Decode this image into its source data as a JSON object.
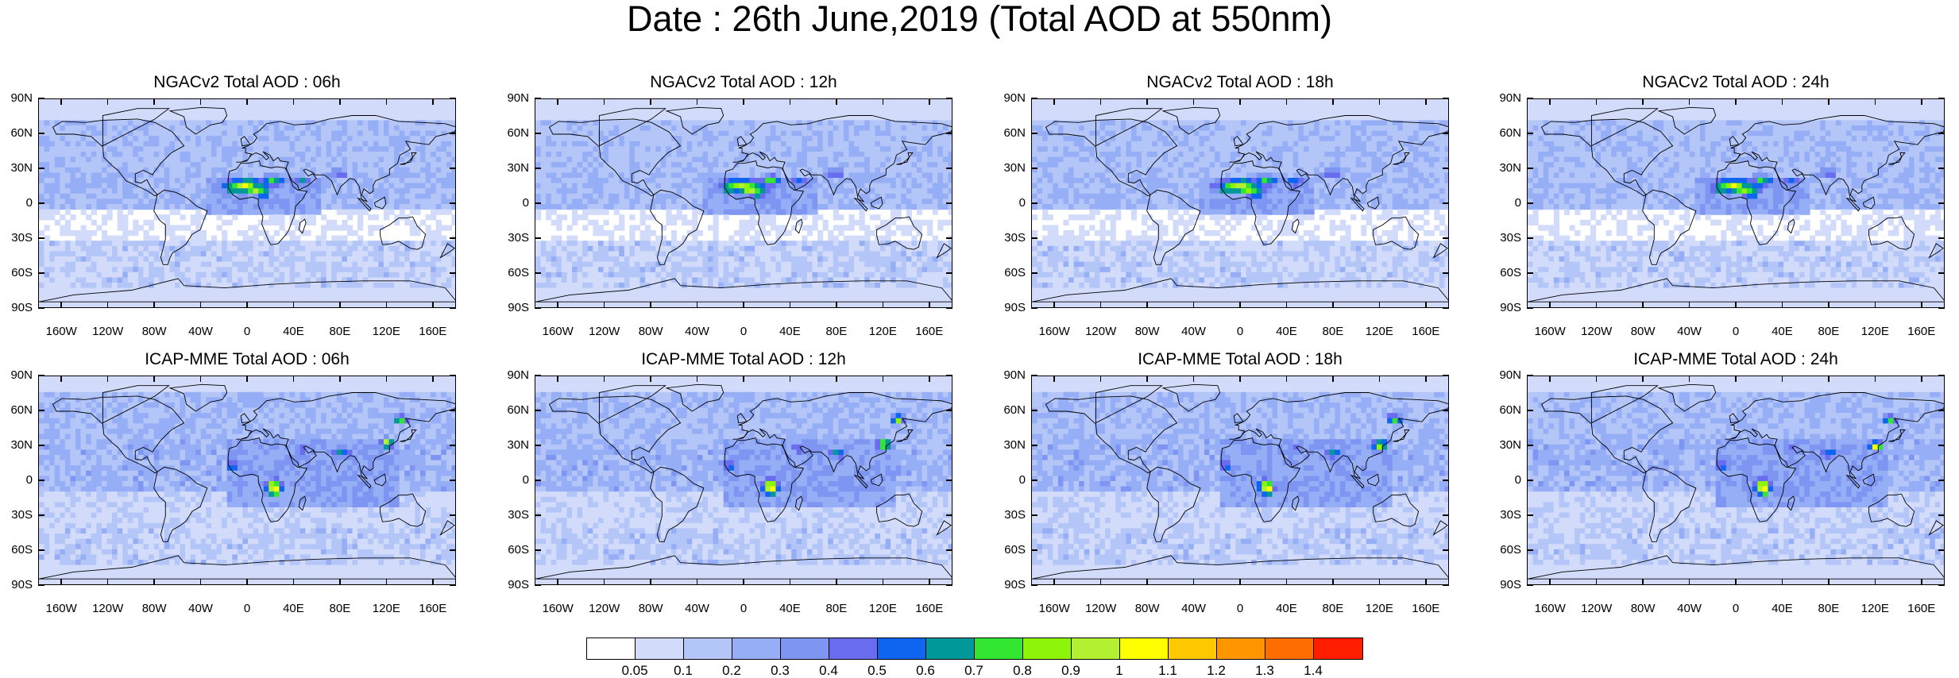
{
  "title": "Date : 26th June,2019 (Total AOD at 550nm)",
  "chart_data": [
    {
      "type": "heatmap",
      "title": "NGACv2 Total AOD : 06h",
      "model": "NGACv2",
      "hour": "06h",
      "row": 0,
      "col": 0
    },
    {
      "type": "heatmap",
      "title": "NGACv2 Total AOD : 12h",
      "model": "NGACv2",
      "hour": "12h",
      "row": 0,
      "col": 1
    },
    {
      "type": "heatmap",
      "title": "NGACv2 Total AOD : 18h",
      "model": "NGACv2",
      "hour": "18h",
      "row": 0,
      "col": 2
    },
    {
      "type": "heatmap",
      "title": "NGACv2 Total AOD : 24h",
      "model": "NGACv2",
      "hour": "24h",
      "row": 0,
      "col": 3
    },
    {
      "type": "heatmap",
      "title": "ICAP-MME Total AOD : 06h",
      "model": "ICAP-MME",
      "hour": "06h",
      "row": 1,
      "col": 0
    },
    {
      "type": "heatmap",
      "title": "ICAP-MME Total AOD : 12h",
      "model": "ICAP-MME",
      "hour": "12h",
      "row": 1,
      "col": 1
    },
    {
      "type": "heatmap",
      "title": "ICAP-MME Total AOD : 18h",
      "model": "ICAP-MME",
      "hour": "18h",
      "row": 1,
      "col": 2
    },
    {
      "type": "heatmap",
      "title": "ICAP-MME Total AOD : 24h",
      "model": "ICAP-MME",
      "hour": "24h",
      "row": 1,
      "col": 3
    }
  ],
  "axes": {
    "lat_ticks": [
      "90N",
      "60N",
      "30N",
      "0",
      "30S",
      "60S",
      "90S"
    ],
    "lon_ticks": [
      "160W",
      "120W",
      "80W",
      "40W",
      "0",
      "40E",
      "80E",
      "120E",
      "160E"
    ],
    "lat_range": [
      -90,
      90
    ],
    "lon_range": [
      -180,
      180
    ],
    "lon_values": [
      -160,
      -120,
      -80,
      -40,
      0,
      40,
      80,
      120,
      160
    ],
    "lat_values": [
      90,
      60,
      30,
      0,
      -30,
      -60,
      -90
    ]
  },
  "colorbar": {
    "labels": [
      "0.05",
      "0.1",
      "0.2",
      "0.3",
      "0.4",
      "0.5",
      "0.6",
      "0.7",
      "0.8",
      "0.9",
      "1",
      "1.1",
      "1.2",
      "1.3",
      "1.4"
    ],
    "colors": [
      "#ffffff",
      "#d2dcfa",
      "#b4c6f8",
      "#96aef6",
      "#7e96f2",
      "#6a6cf0",
      "#0f64f0",
      "#009898",
      "#32e632",
      "#8ef50a",
      "#b4f032",
      "#ffff00",
      "#ffc800",
      "#ff9600",
      "#ff6e00",
      "#ff1e00"
    ]
  }
}
